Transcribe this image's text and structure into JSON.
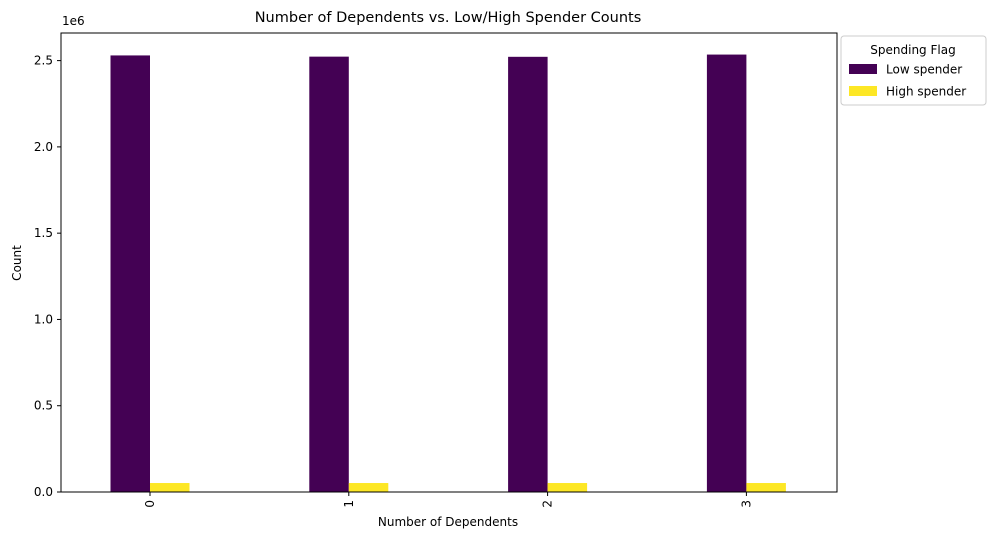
{
  "chart_data": {
    "type": "bar",
    "title": "Number of Dependents vs. Low/High Spender Counts",
    "xlabel": "Number of Dependents",
    "ylabel": "Count",
    "y_offset_label": "1e6",
    "categories": [
      "0",
      "1",
      "2",
      "3"
    ],
    "yticks": [
      0,
      500000,
      1000000,
      1500000,
      2000000,
      2500000
    ],
    "ytick_labels": [
      "0.0",
      "0.5",
      "1.0",
      "1.5",
      "2.0",
      "2.5"
    ],
    "ylim": [
      0,
      2660000
    ],
    "grid": false,
    "legend_title": "Spending Flag",
    "legend_position": "outside top-right",
    "series": [
      {
        "name": "Low spender",
        "color": "#440154",
        "values": [
          2530000,
          2523000,
          2522000,
          2535000
        ]
      },
      {
        "name": "High spender",
        "color": "#fde725",
        "values": [
          52000,
          52000,
          52000,
          52000
        ]
      }
    ]
  }
}
